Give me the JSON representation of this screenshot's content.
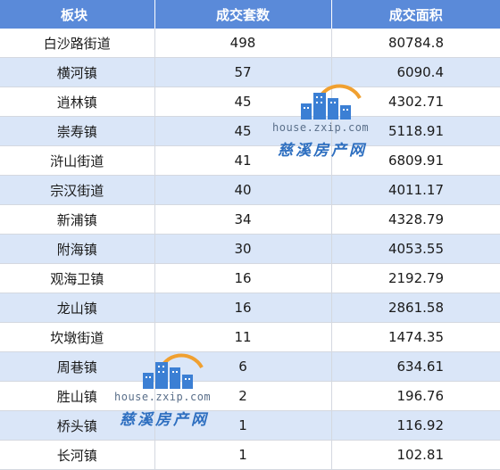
{
  "table": {
    "headers": [
      "板块",
      "成交套数",
      "成交面积"
    ],
    "rows": [
      [
        "白沙路街道",
        "498",
        "80784.8"
      ],
      [
        "横河镇",
        "57",
        "6090.4"
      ],
      [
        "逍林镇",
        "45",
        "4302.71"
      ],
      [
        "崇寿镇",
        "45",
        "5118.91"
      ],
      [
        "浒山街道",
        "41",
        "6809.91"
      ],
      [
        "宗汉街道",
        "40",
        "4011.17"
      ],
      [
        "新浦镇",
        "34",
        "4328.79"
      ],
      [
        "附海镇",
        "30",
        "4053.55"
      ],
      [
        "观海卫镇",
        "16",
        "2192.79"
      ],
      [
        "龙山镇",
        "16",
        "2861.58"
      ],
      [
        "坎墩街道",
        "11",
        "1474.35"
      ],
      [
        "周巷镇",
        "6",
        "634.61"
      ],
      [
        "胜山镇",
        "2",
        "196.76"
      ],
      [
        "桥头镇",
        "1",
        "116.92"
      ],
      [
        "长河镇",
        "1",
        "102.81"
      ]
    ]
  },
  "watermark": {
    "url": "house.zxip.com",
    "brand": "慈溪房产网",
    "colors": {
      "building": "#3b7fd4",
      "arc": "#f0a030",
      "text": "#2e6fc0"
    }
  },
  "colors": {
    "header_bg": "#5a8ad9",
    "stripe_bg": "#dae6f8"
  }
}
